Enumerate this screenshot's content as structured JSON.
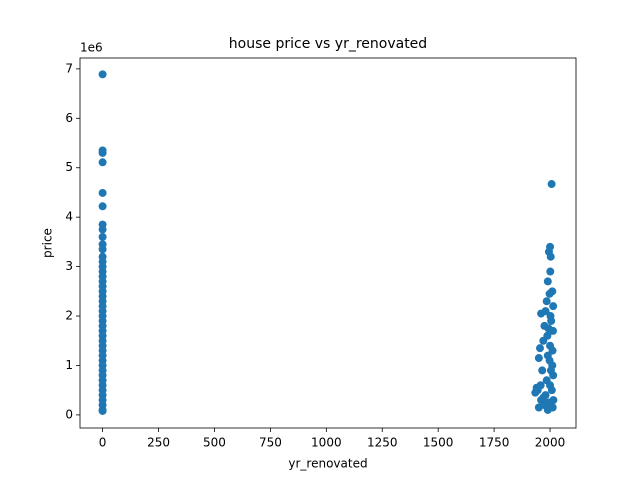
{
  "chart_data": {
    "type": "scatter",
    "title": "house price vs yr_renovated",
    "x_label": "yr_renovated",
    "y_label": "price",
    "y_offset_label": "1e6",
    "color": "#1f77b4",
    "x": [
      0,
      0,
      0,
      0,
      0,
      0,
      0,
      0,
      0,
      0,
      0,
      0,
      0,
      0,
      0,
      0,
      0,
      0,
      0,
      0,
      0,
      0,
      0,
      0,
      0,
      0,
      0,
      0,
      0,
      0,
      0,
      0,
      0,
      0,
      0,
      0,
      0,
      0,
      0,
      0,
      0,
      0,
      0,
      0,
      2007,
      2000,
      1995,
      2003,
      2001,
      1990,
      2010,
      1998,
      1985,
      2014,
      1980,
      1960,
      2005,
      1975,
      2013,
      1970,
      2000,
      1955,
      1990,
      1950,
      2010,
      1965,
      2014,
      1945,
      1934,
      1985,
      2000,
      1960,
      1950,
      2015,
      1975,
      1990,
      2008,
      1995,
      2012,
      1940,
      1958,
      1980,
      1970,
      2004,
      1998,
      2011,
      1988,
      2002,
      1993
    ],
    "y": [
      6.89,
      5.35,
      5.3,
      5.11,
      4.49,
      4.22,
      3.85,
      3.75,
      3.6,
      3.45,
      3.35,
      3.2,
      3.1,
      3.0,
      2.9,
      2.8,
      2.7,
      2.6,
      2.5,
      2.4,
      2.3,
      2.2,
      2.1,
      2.0,
      1.9,
      1.8,
      1.7,
      1.6,
      1.5,
      1.4,
      1.3,
      1.2,
      1.1,
      1.0,
      0.9,
      0.8,
      0.7,
      0.6,
      0.5,
      0.4,
      0.3,
      0.2,
      0.1,
      0.08,
      4.67,
      3.4,
      3.3,
      3.2,
      2.9,
      2.7,
      2.5,
      2.45,
      2.3,
      2.2,
      2.1,
      2.05,
      1.9,
      1.8,
      1.7,
      1.5,
      1.4,
      1.35,
      1.2,
      1.15,
      1.0,
      0.9,
      0.8,
      0.5,
      0.45,
      0.7,
      0.6,
      0.3,
      0.15,
      0.3,
      0.2,
      0.1,
      0.5,
      0.25,
      0.15,
      0.55,
      0.6,
      0.4,
      0.35,
      0.9,
      1.1,
      1.3,
      1.6,
      2.0,
      1.75
    ],
    "xlim": [
      -101,
      2116
    ],
    "ylim": [
      -0.265,
      7.22
    ],
    "xticks": [
      0,
      250,
      500,
      750,
      1000,
      1250,
      1500,
      1750,
      2000
    ],
    "yticks": [
      0,
      1,
      2,
      3,
      4,
      5,
      6,
      7
    ]
  }
}
